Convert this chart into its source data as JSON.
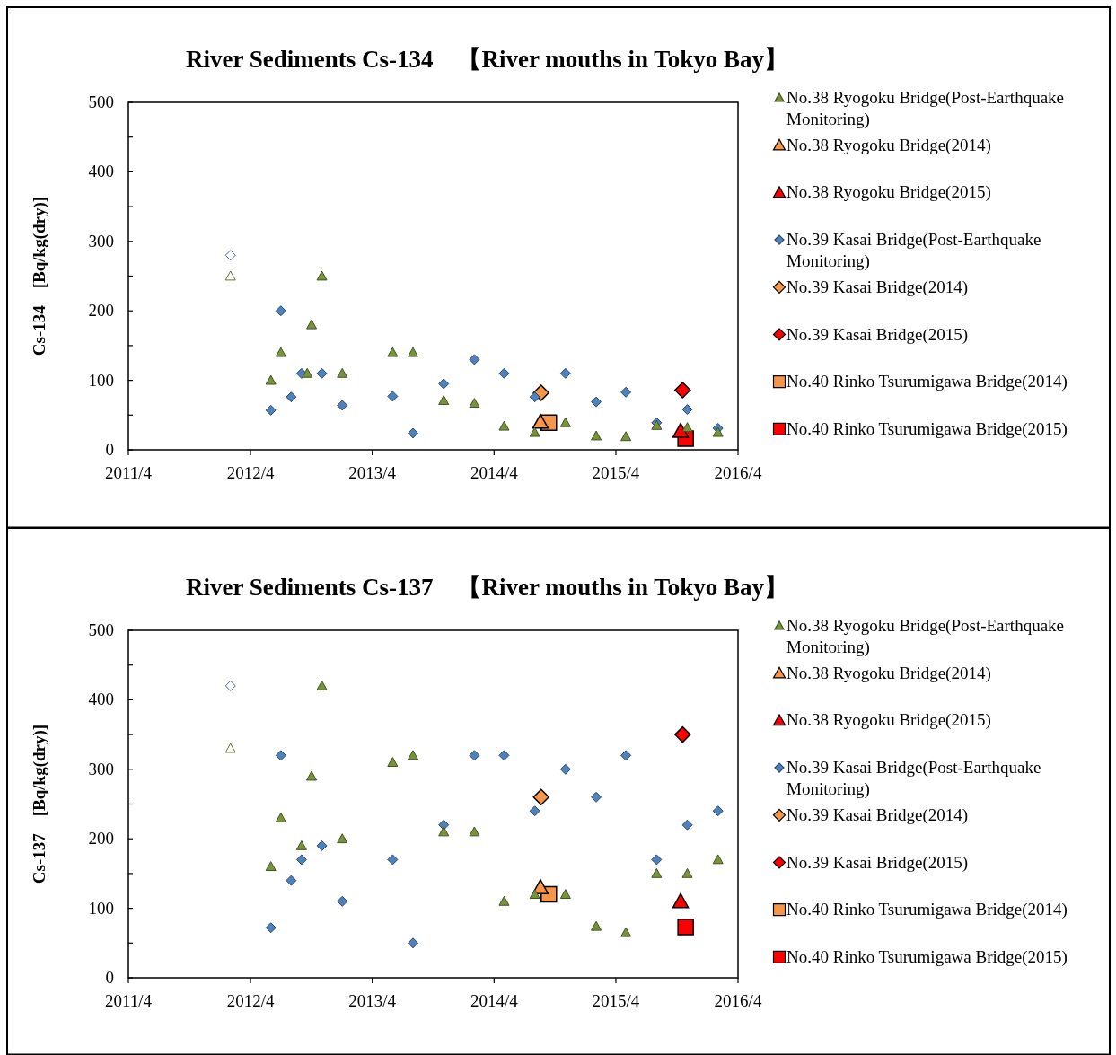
{
  "chart_data": [
    {
      "type": "scatter",
      "title": "River Sediments Cs-134　【River mouths in Tokyo Bay】",
      "ylabel": "Cs-134　[Bq/kg(dry)]",
      "xlim": [
        "2011-04",
        "2016-04"
      ],
      "xticks": [
        {
          "value": "2011-04",
          "label": "2011/4"
        },
        {
          "value": "2012-04",
          "label": "2012/4"
        },
        {
          "value": "2013-04",
          "label": "2013/4"
        },
        {
          "value": "2014-04",
          "label": "2014/4"
        },
        {
          "value": "2015-04",
          "label": "2015/4"
        },
        {
          "value": "2016-04",
          "label": "2016/4"
        }
      ],
      "ylim": [
        0,
        500
      ],
      "yticks": [
        0,
        {
          "value": 50,
          "label": null
        },
        100,
        {
          "value": 150,
          "label": null
        },
        200,
        {
          "value": 250,
          "label": null
        },
        300,
        {
          "value": 350,
          "label": null
        },
        400,
        {
          "value": 450,
          "label": null
        },
        500
      ],
      "legend": "right",
      "grid": false,
      "series": [
        {
          "name": "No.38 Ryogoku Bridge(Post-Earthquake Monitoring)",
          "color": "#77933c",
          "marker": "triangle",
          "x": [
            "2012-02",
            "2012-06",
            "2012-07",
            "2012-09-18",
            "2012-10",
            "2012-11",
            "2013-01",
            "2013-06",
            "2013-08",
            "2013-11",
            "2014-02",
            "2014-05",
            "2014-08",
            "2014-11",
            "2015-02",
            "2015-05",
            "2015-08",
            "2015-11",
            "2016-02"
          ],
          "values": [
            250,
            100,
            140,
            110,
            180,
            250,
            110,
            140,
            140,
            71,
            67,
            34,
            25,
            39,
            20,
            19,
            35,
            32,
            25
          ],
          "colors": [
            "#ffffff",
            "#77933c",
            "#77933c",
            "#77933c",
            "#77933c",
            "#77933c",
            "#77933c",
            "#77933c",
            "#77933c",
            "#77933c",
            "#77933c",
            "#77933c",
            "#77933c",
            "#77933c",
            "#77933c",
            "#77933c",
            "#77933c",
            "#77933c",
            "#77933c"
          ]
        },
        {
          "name": "No.38 Ryogoku Bridge(2014)",
          "color": "#f79646",
          "marker": "triangle",
          "x": [
            "2014-08-18"
          ],
          "values": [
            40
          ]
        },
        {
          "name": "No.38 Ryogoku Bridge(2015)",
          "color": "#ff0000",
          "marker": "triangle",
          "x": [
            "2015-10-12"
          ],
          "values": [
            27
          ]
        },
        {
          "name": "No.39 Kasai Bridge(Post-Earthquake Monitoring)",
          "color": "#4f81bd",
          "marker": "diamond",
          "x": [
            "2012-02",
            "2012-06",
            "2012-07",
            "2012-08",
            "2012-09",
            "2012-11",
            "2013-01",
            "2013-06",
            "2013-08",
            "2013-11",
            "2014-02",
            "2014-05",
            "2014-08",
            "2014-11",
            "2015-02",
            "2015-05",
            "2015-08",
            "2015-11",
            "2016-02"
          ],
          "values": [
            280,
            57,
            200,
            76,
            110,
            110,
            64,
            77,
            24,
            95,
            130,
            110,
            76,
            110,
            69,
            83,
            39,
            58,
            31
          ],
          "colors": [
            "#ffffff",
            "#4f81bd",
            "#4f81bd",
            "#4f81bd",
            "#4f81bd",
            "#4f81bd",
            "#4f81bd",
            "#4f81bd",
            "#4f81bd",
            "#4f81bd",
            "#4f81bd",
            "#4f81bd",
            "#4f81bd",
            "#4f81bd",
            "#4f81bd",
            "#4f81bd",
            "#4f81bd",
            "#4f81bd",
            "#4f81bd"
          ]
        },
        {
          "name": "No.39 Kasai Bridge(2014)",
          "color": "#f79646",
          "marker": "diamond",
          "x": [
            "2014-08-20"
          ],
          "values": [
            82
          ]
        },
        {
          "name": "No.39 Kasai Bridge(2015)",
          "color": "#ff0000",
          "marker": "diamond",
          "x": [
            "2015-10-18"
          ],
          "values": [
            86
          ]
        },
        {
          "name": "No.40 Rinko Tsurumigawa Bridge(2014)",
          "color": "#f79646",
          "marker": "square",
          "x": [
            "2014-09-12"
          ],
          "values": [
            39
          ]
        },
        {
          "name": "No.40 Rinko Tsurumigawa Bridge(2015)",
          "color": "#ff0000",
          "marker": "square",
          "x": [
            "2015-10-27"
          ],
          "values": [
            16
          ]
        }
      ]
    },
    {
      "type": "scatter",
      "title": "River Sediments Cs-137　【River mouths in Tokyo Bay】",
      "ylabel": "Cs-137　[Bq/kg(dry)]",
      "xlim": [
        "2011-04",
        "2016-04"
      ],
      "xticks": [
        {
          "value": "2011-04",
          "label": "2011/4"
        },
        {
          "value": "2012-04",
          "label": "2012/4"
        },
        {
          "value": "2013-04",
          "label": "2013/4"
        },
        {
          "value": "2014-04",
          "label": "2014/4"
        },
        {
          "value": "2015-04",
          "label": "2015/4"
        },
        {
          "value": "2016-04",
          "label": "2016/4"
        }
      ],
      "ylim": [
        0,
        500
      ],
      "yticks": [
        0,
        {
          "value": 50,
          "label": null
        },
        100,
        {
          "value": 150,
          "label": null
        },
        200,
        {
          "value": 250,
          "label": null
        },
        300,
        {
          "value": 350,
          "label": null
        },
        400,
        {
          "value": 450,
          "label": null
        },
        500
      ],
      "legend": "right",
      "grid": false,
      "series": [
        {
          "name": "No.38 Ryogoku Bridge(Post-Earthquake Monitoring)",
          "color": "#77933c",
          "marker": "triangle",
          "x": [
            "2012-02",
            "2012-06",
            "2012-07",
            "2012-09",
            "2012-10",
            "2012-11",
            "2013-01",
            "2013-06",
            "2013-08",
            "2013-11",
            "2014-02",
            "2014-05",
            "2014-08",
            "2014-11",
            "2015-02",
            "2015-05",
            "2015-08",
            "2015-11",
            "2016-02"
          ],
          "values": [
            330,
            160,
            230,
            190,
            290,
            420,
            200,
            310,
            320,
            210,
            210,
            110,
            120,
            120,
            74,
            65,
            150,
            150,
            170
          ],
          "colors": [
            "#ffffff",
            "#77933c",
            "#77933c",
            "#77933c",
            "#77933c",
            "#77933c",
            "#77933c",
            "#77933c",
            "#77933c",
            "#77933c",
            "#77933c",
            "#77933c",
            "#77933c",
            "#77933c",
            "#77933c",
            "#77933c",
            "#77933c",
            "#77933c",
            "#77933c"
          ]
        },
        {
          "name": "No.38 Ryogoku Bridge(2014)",
          "color": "#f79646",
          "marker": "triangle",
          "x": [
            "2014-08-18"
          ],
          "values": [
            130
          ]
        },
        {
          "name": "No.38 Ryogoku Bridge(2015)",
          "color": "#ff0000",
          "marker": "triangle",
          "x": [
            "2015-10-12"
          ],
          "values": [
            110
          ]
        },
        {
          "name": "No.39 Kasai Bridge(Post-Earthquake Monitoring)",
          "color": "#4f81bd",
          "marker": "diamond",
          "x": [
            "2012-02",
            "2012-06",
            "2012-07",
            "2012-08",
            "2012-09",
            "2012-11",
            "2013-01",
            "2013-06",
            "2013-08",
            "2013-11",
            "2014-02",
            "2014-05",
            "2014-08",
            "2014-11",
            "2015-02",
            "2015-05",
            "2015-08",
            "2015-11",
            "2016-02"
          ],
          "values": [
            420,
            72,
            320,
            140,
            170,
            190,
            110,
            170,
            50,
            220,
            320,
            320,
            240,
            300,
            260,
            320,
            170,
            220,
            240
          ],
          "colors": [
            "#ffffff",
            "#4f81bd",
            "#4f81bd",
            "#4f81bd",
            "#4f81bd",
            "#4f81bd",
            "#4f81bd",
            "#4f81bd",
            "#4f81bd",
            "#4f81bd",
            "#4f81bd",
            "#4f81bd",
            "#4f81bd",
            "#4f81bd",
            "#4f81bd",
            "#4f81bd",
            "#4f81bd",
            "#4f81bd",
            "#4f81bd"
          ]
        },
        {
          "name": "No.39 Kasai Bridge(2014)",
          "color": "#f79646",
          "marker": "diamond",
          "x": [
            "2014-08-20"
          ],
          "values": [
            260
          ]
        },
        {
          "name": "No.39 Kasai Bridge(2015)",
          "color": "#ff0000",
          "marker": "diamond",
          "x": [
            "2015-10-18"
          ],
          "values": [
            350
          ]
        },
        {
          "name": "No.40 Rinko Tsurumigawa Bridge(2014)",
          "color": "#f79646",
          "marker": "square",
          "x": [
            "2014-09-12"
          ],
          "values": [
            120
          ]
        },
        {
          "name": "No.40 Rinko Tsurumigawa Bridge(2015)",
          "color": "#ff0000",
          "marker": "square",
          "x": [
            "2015-10-27"
          ],
          "values": [
            73
          ]
        }
      ]
    }
  ]
}
